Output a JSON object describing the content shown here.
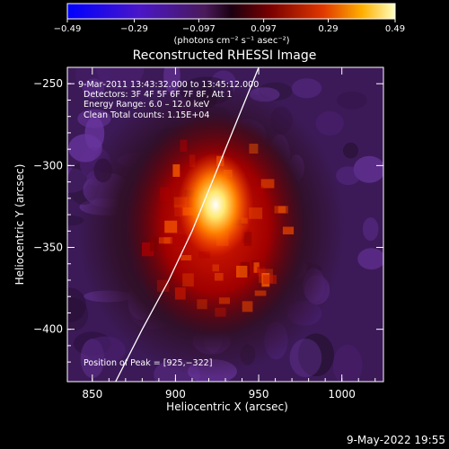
{
  "chart_data": {
    "type": "heatmap",
    "title": "Reconstructed RHESSI Image",
    "xlabel": "Heliocentric X (arcsec)",
    "ylabel": "Heliocentric Y (arcsec)",
    "xlim": [
      835,
      1025
    ],
    "ylim": [
      -432,
      -240
    ],
    "x_ticks": [
      850,
      900,
      950,
      1000
    ],
    "y_ticks": [
      -250,
      -300,
      -350,
      -400
    ],
    "x_tick_labels": [
      "850",
      "900",
      "950",
      "1000"
    ],
    "y_tick_labels": [
      "−250",
      "−300",
      "−350",
      "−400"
    ],
    "colorbar": {
      "min": -0.49,
      "max": 0.49,
      "tick_values": [
        -0.49,
        -0.29,
        -0.097,
        0.097,
        0.29,
        0.49
      ],
      "tick_labels": [
        "−0.49",
        "−0.29",
        "−0.097",
        "0.097",
        "0.29",
        "0.49"
      ],
      "unit_label": "(photons cm⁻² s⁻¹ asec⁻²)"
    },
    "annotations": [
      "9‑Mar‑2011 13:43:32.000 to 13:45:12.000",
      "Detectors: 3F 4F 5F 6F 7F 8F, Att 1",
      "Energy Range: 6.0 – 12.0 keV",
      "Clean    Total counts: 1.15E+04"
    ],
    "peak_label": "Position of Peak = [925,−322]",
    "peak": [
      925,
      -322
    ],
    "limb_curve": [
      [
        864,
        -432
      ],
      [
        880,
        -400
      ],
      [
        896,
        -370
      ],
      [
        910,
        -340
      ],
      [
        920,
        -315
      ],
      [
        930,
        -290
      ],
      [
        940,
        -265
      ],
      [
        950,
        -240
      ]
    ],
    "grid": false
  },
  "footer": {
    "date": "9‑May‑2022 19:55"
  }
}
